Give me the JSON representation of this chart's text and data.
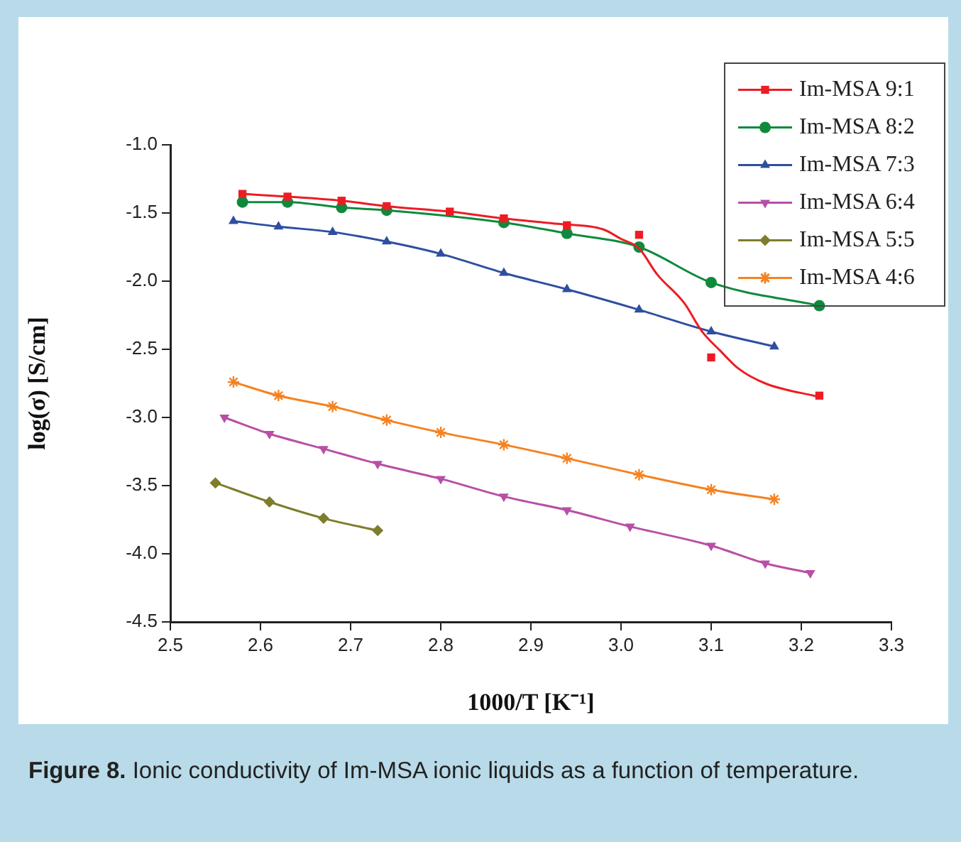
{
  "chart_data": {
    "type": "line",
    "xlabel": "1000/T [K⁻¹]",
    "ylabel": "log(σ) [S/cm]",
    "xlim": [
      2.5,
      3.3
    ],
    "xticks": [
      2.5,
      2.6,
      2.7,
      2.8,
      2.9,
      {
        "value": 3,
        "label": "3.0"
      },
      3.1,
      3.2,
      3.3
    ],
    "ylim": [
      -4.5,
      -1
    ],
    "yticks": [
      {
        "value": -4.5,
        "label": "-4.5"
      },
      {
        "value": -4,
        "label": "-4.0"
      },
      {
        "value": -3.5,
        "label": "-3.5"
      },
      {
        "value": -3,
        "label": "-3.0"
      },
      {
        "value": -2.5,
        "label": "-2.5"
      },
      {
        "value": -2,
        "label": "-2.0"
      },
      {
        "value": -1.5,
        "label": "-1.5"
      },
      {
        "value": -1,
        "label": "-1.0"
      }
    ],
    "grid": false,
    "legend": "top right",
    "line_style": "solid",
    "series": [
      {
        "name": "Im-MSA 9:1",
        "type": "scatter",
        "marker": "square",
        "color": "#ed1c24",
        "x": [
          2.58,
          2.63,
          2.69,
          2.74,
          2.81,
          2.87,
          2.94,
          3.02,
          3.1,
          3.22
        ],
        "values": [
          -1.36,
          -1.38,
          -1.41,
          -1.45,
          -1.49,
          -1.54,
          -1.59,
          -1.66,
          -2.56,
          -2.84
        ]
      },
      {
        "marker": "none",
        "color": "#ed1c24",
        "x": [
          2.58,
          2.63,
          2.69,
          2.74,
          2.81,
          2.87,
          2.93,
          2.98,
          3.0,
          3.02,
          3.04,
          3.07,
          3.09,
          3.11,
          3.13,
          3.16,
          3.22
        ],
        "values": [
          -1.36,
          -1.38,
          -1.41,
          -1.45,
          -1.49,
          -1.54,
          -1.58,
          -1.62,
          -1.69,
          -1.76,
          -1.95,
          -2.16,
          -2.37,
          -2.51,
          -2.64,
          -2.75,
          -2.85
        ]
      },
      {
        "name": "Im-MSA 8:2",
        "marker": "circle",
        "color": "#0f8a3c",
        "x": [
          2.58,
          2.63,
          2.69,
          2.74,
          2.87,
          2.94,
          3.02,
          3.1,
          3.22
        ],
        "values": [
          -1.42,
          -1.42,
          -1.46,
          -1.48,
          -1.57,
          -1.65,
          -1.75,
          -2.01,
          -2.18
        ]
      },
      {
        "name": "Im-MSA 7:3",
        "marker": "triangle",
        "color": "#2e4fa0",
        "x": [
          2.57,
          2.62,
          2.68,
          2.74,
          2.8,
          2.87,
          2.94,
          3.02,
          3.1,
          3.17
        ],
        "values": [
          -1.56,
          -1.6,
          -1.64,
          -1.71,
          -1.8,
          -1.94,
          -2.06,
          -2.21,
          -2.37,
          -2.48
        ]
      },
      {
        "name": "Im-MSA 6:4",
        "marker": "triangle-down",
        "color": "#b84fa6",
        "x": [
          2.56,
          2.61,
          2.67,
          2.73,
          2.8,
          2.87,
          2.94,
          3.01,
          3.1,
          3.16,
          3.21
        ],
        "values": [
          -3.0,
          -3.12,
          -3.23,
          -3.34,
          -3.45,
          -3.58,
          -3.68,
          -3.8,
          -3.94,
          -4.07,
          -4.14
        ]
      },
      {
        "name": "Im-MSA 5:5",
        "marker": "diamond",
        "color": "#7d7d2c",
        "x": [
          2.55,
          2.61,
          2.67,
          2.73
        ],
        "values": [
          -3.48,
          -3.62,
          -3.74,
          -3.83
        ]
      },
      {
        "name": "Im-MSA 4:6",
        "marker": "cross",
        "color": "#f58220",
        "x": [
          2.57,
          2.62,
          2.68,
          2.74,
          2.8,
          2.87,
          2.94,
          3.02,
          3.1,
          3.17
        ],
        "values": [
          -2.74,
          -2.84,
          -2.92,
          -3.02,
          -3.11,
          -3.2,
          -3.3,
          -3.42,
          -3.53,
          -3.6
        ]
      }
    ],
    "annotations": [
      "Figure 8. Ionic conductivity of Im-MSA ionic liquids as a function of temperature."
    ]
  }
}
